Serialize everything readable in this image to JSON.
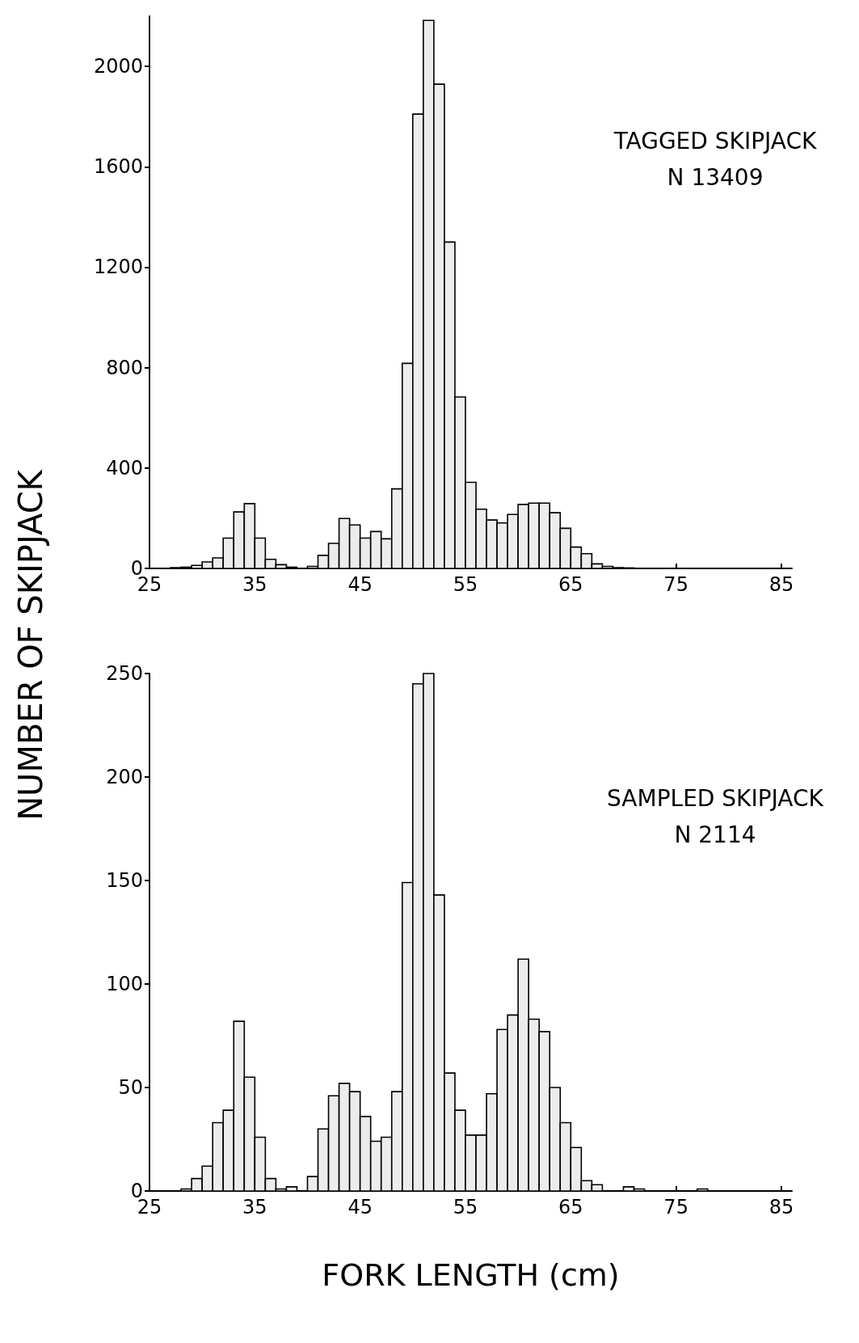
{
  "chart_data": [
    {
      "type": "histogram",
      "ylabel": "NUMBER OF SKIPJACK",
      "annotations": [
        "TAGGED SKIPJACK",
        "N 13409"
      ],
      "bins": [
        25,
        26,
        27,
        28,
        29,
        30,
        31,
        32,
        33,
        34,
        35,
        36,
        37,
        38,
        39,
        40,
        41,
        42,
        43,
        44,
        45,
        46,
        47,
        48,
        49,
        50,
        51,
        52,
        53,
        54,
        55,
        56,
        57,
        58,
        59,
        60,
        61,
        62,
        63,
        64,
        65,
        66,
        67,
        68,
        69,
        70,
        71,
        72,
        73,
        74,
        75,
        76,
        77,
        78,
        79,
        80,
        81,
        82,
        83,
        84,
        85
      ],
      "values": [
        0,
        0,
        3,
        5,
        12,
        26,
        42,
        121,
        225,
        258,
        121,
        36,
        15,
        5,
        0,
        8,
        52,
        100,
        199,
        173,
        121,
        147,
        118,
        317,
        817,
        1810,
        2183,
        1929,
        1300,
        683,
        343,
        236,
        193,
        181,
        215,
        255,
        260,
        260,
        222,
        160,
        85,
        59,
        18,
        8,
        3,
        2,
        0,
        0,
        0,
        0,
        0,
        0,
        0,
        0,
        0,
        0,
        0,
        0,
        0,
        0
      ],
      "color": "#ececec",
      "xlim": [
        25,
        86
      ],
      "xticks": [
        25,
        35,
        45,
        55,
        65,
        75,
        85
      ],
      "ylim": [
        0,
        2200
      ],
      "yticks": [
        0,
        400,
        800,
        1200,
        1600,
        2000
      ],
      "grid": false
    },
    {
      "type": "histogram",
      "xlabel": "FORK LENGTH (cm)",
      "annotations": [
        "SAMPLED SKIPJACK",
        "N 2114"
      ],
      "bins": [
        25,
        26,
        27,
        28,
        29,
        30,
        31,
        32,
        33,
        34,
        35,
        36,
        37,
        38,
        39,
        40,
        41,
        42,
        43,
        44,
        45,
        46,
        47,
        48,
        49,
        50,
        51,
        52,
        53,
        54,
        55,
        56,
        57,
        58,
        59,
        60,
        61,
        62,
        63,
        64,
        65,
        66,
        67,
        68,
        69,
        70,
        71,
        72,
        73,
        74,
        75,
        76,
        77,
        78,
        79,
        80,
        81,
        82,
        83,
        84,
        85
      ],
      "values": [
        0,
        0,
        0,
        1,
        6,
        12,
        33,
        39,
        82,
        55,
        26,
        6,
        1,
        2,
        0,
        7,
        30,
        46,
        52,
        48,
        36,
        24,
        26,
        48,
        149,
        245,
        250,
        143,
        57,
        39,
        27,
        27,
        47,
        78,
        85,
        112,
        83,
        77,
        50,
        33,
        21,
        5,
        3,
        0,
        0,
        2,
        1,
        0,
        0,
        0,
        0,
        0,
        1,
        0,
        0,
        0,
        0,
        0,
        0,
        0
      ],
      "color": "#ececec",
      "xlim": [
        25,
        86
      ],
      "xticks": [
        25,
        35,
        45,
        55,
        65,
        75,
        85
      ],
      "ylim": [
        0,
        250
      ],
      "yticks": [
        0,
        50,
        100,
        150,
        200,
        250
      ],
      "grid": false
    }
  ]
}
